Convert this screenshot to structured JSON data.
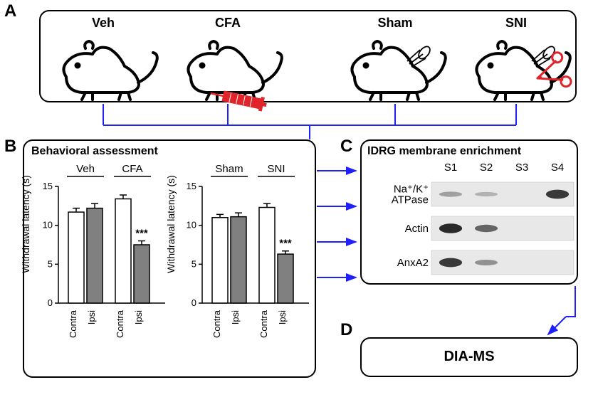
{
  "panelA": {
    "label": "A",
    "conditions": [
      "Veh",
      "CFA",
      "Sham",
      "SNI"
    ]
  },
  "panelB": {
    "label": "B",
    "title": "Behavioral assessment",
    "yAxisLabel": "Withdrawal latency (s)",
    "chart1": {
      "groups": [
        "Veh",
        "CFA"
      ],
      "categories": [
        "Contra",
        "Ipsi",
        "Contra",
        "Ipsi"
      ],
      "values": [
        11.7,
        12.2,
        13.4,
        7.5
      ],
      "errors": [
        0.5,
        0.6,
        0.5,
        0.5
      ],
      "sig": {
        "index": 3,
        "label": "***"
      },
      "ylim": [
        0,
        15
      ],
      "ytick_step": 5,
      "bar_colors": [
        "#ffffff",
        "#808080",
        "#ffffff",
        "#808080"
      ],
      "bar_width": 0.6,
      "background_color": "#ffffff"
    },
    "chart2": {
      "groups": [
        "Sham",
        "SNI"
      ],
      "categories": [
        "Contra",
        "Ipsi",
        "Contra",
        "Ipsi"
      ],
      "values": [
        11.0,
        11.1,
        12.3,
        6.3
      ],
      "errors": [
        0.4,
        0.5,
        0.5,
        0.4
      ],
      "sig": {
        "index": 3,
        "label": "***"
      },
      "ylim": [
        0,
        15
      ],
      "ytick_step": 5,
      "bar_colors": [
        "#ffffff",
        "#808080",
        "#ffffff",
        "#808080"
      ],
      "bar_width": 0.6,
      "background_color": "#ffffff"
    }
  },
  "panelC": {
    "label": "C",
    "title": "lDRG membrane enrichment",
    "lanes": [
      "S1",
      "S2",
      "S3",
      "S4"
    ],
    "rows": [
      {
        "protein": "Na⁺/K⁺\nATPase",
        "signal": [
          0.15,
          0.03,
          0.0,
          0.85
        ]
      },
      {
        "protein": "Actin",
        "signal": [
          0.95,
          0.55,
          0.0,
          0.0
        ]
      },
      {
        "protein": "AnxA2",
        "signal": [
          0.85,
          0.25,
          0.0,
          0.0
        ]
      }
    ]
  },
  "panelD": {
    "label": "D",
    "title": "DIA-MS"
  },
  "colors": {
    "flow": "#2020ff",
    "red": "#e0242a",
    "black": "#000000",
    "gray": "#808080"
  }
}
